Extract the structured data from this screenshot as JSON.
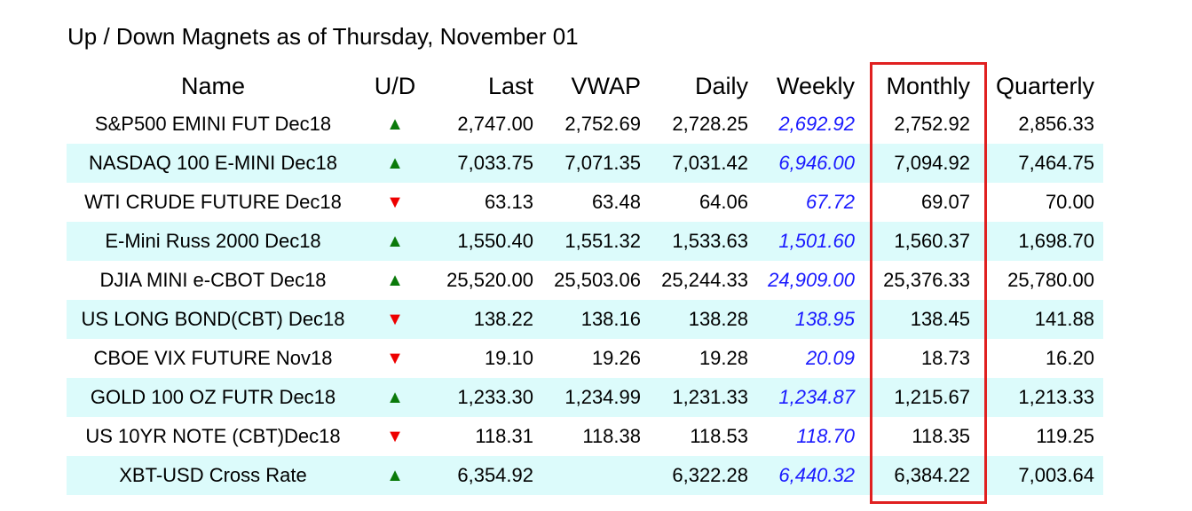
{
  "title": "Up / Down Magnets as of Thursday, November 01",
  "columns": {
    "name": "Name",
    "ud": "U/D",
    "last": "Last",
    "vwap": "VWAP",
    "daily": "Daily",
    "weekly": "Weekly",
    "monthly": "Monthly",
    "quarterly": "Quarterly"
  },
  "highlighted_column": "Monthly",
  "colors": {
    "up": "#0a7a0a",
    "down": "#ee0000",
    "weekly": "#1a1aff",
    "highlight": "#e02020",
    "row_alt": "#dcfbfb"
  },
  "rows": [
    {
      "name": "S&P500 EMINI FUT Dec18",
      "ud": "▲",
      "last": "2,747.00",
      "vwap": "2,752.69",
      "daily": "2,728.25",
      "weekly": "2,692.92",
      "monthly": "2,752.92",
      "quarterly": "2,856.33"
    },
    {
      "name": "NASDAQ 100 E-MINI Dec18",
      "ud": "▲",
      "last": "7,033.75",
      "vwap": "7,071.35",
      "daily": "7,031.42",
      "weekly": "6,946.00",
      "monthly": "7,094.92",
      "quarterly": "7,464.75"
    },
    {
      "name": "WTI CRUDE FUTURE Dec18",
      "ud": "▼",
      "last": "63.13",
      "vwap": "63.48",
      "daily": "64.06",
      "weekly": "67.72",
      "monthly": "69.07",
      "quarterly": "70.00"
    },
    {
      "name": "E-Mini Russ 2000 Dec18",
      "ud": "▲",
      "last": "1,550.40",
      "vwap": "1,551.32",
      "daily": "1,533.63",
      "weekly": "1,501.60",
      "monthly": "1,560.37",
      "quarterly": "1,698.70"
    },
    {
      "name": "DJIA MINI e-CBOT Dec18",
      "ud": "▲",
      "last": "25,520.00",
      "vwap": "25,503.06",
      "daily": "25,244.33",
      "weekly": "24,909.00",
      "monthly": "25,376.33",
      "quarterly": "25,780.00"
    },
    {
      "name": "US LONG BOND(CBT) Dec18",
      "ud": "▼",
      "last": "138.22",
      "vwap": "138.16",
      "daily": "138.28",
      "weekly": "138.95",
      "monthly": "138.45",
      "quarterly": "141.88"
    },
    {
      "name": "CBOE VIX FUTURE Nov18",
      "ud": "▼",
      "last": "19.10",
      "vwap": "19.26",
      "daily": "19.28",
      "weekly": "20.09",
      "monthly": "18.73",
      "quarterly": "16.20"
    },
    {
      "name": "GOLD 100 OZ FUTR Dec18",
      "ud": "▲",
      "last": "1,233.30",
      "vwap": "1,234.99",
      "daily": "1,231.33",
      "weekly": "1,234.87",
      "monthly": "1,215.67",
      "quarterly": "1,213.33"
    },
    {
      "name": "US 10YR NOTE (CBT)Dec18",
      "ud": "▼",
      "last": "118.31",
      "vwap": "118.38",
      "daily": "118.53",
      "weekly": "118.70",
      "monthly": "118.35",
      "quarterly": "119.25"
    },
    {
      "name": "XBT-USD Cross Rate",
      "ud": "▲",
      "last": "6,354.92",
      "vwap": "",
      "daily": "6,322.28",
      "weekly": "6,440.32",
      "monthly": "6,384.22",
      "quarterly": "7,003.64"
    }
  ]
}
